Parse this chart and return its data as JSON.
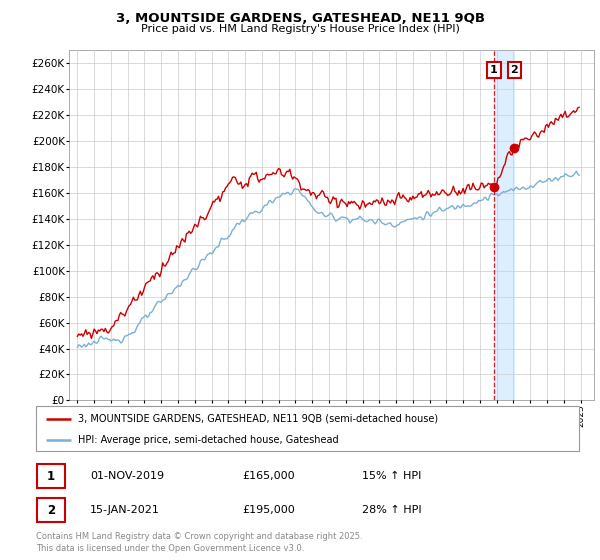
{
  "title": "3, MOUNTSIDE GARDENS, GATESHEAD, NE11 9QB",
  "subtitle": "Price paid vs. HM Land Registry's House Price Index (HPI)",
  "ylim": [
    0,
    270000
  ],
  "yticks": [
    0,
    20000,
    40000,
    60000,
    80000,
    100000,
    120000,
    140000,
    160000,
    180000,
    200000,
    220000,
    240000,
    260000
  ],
  "ytick_labels": [
    "£0",
    "£20K",
    "£40K",
    "£60K",
    "£80K",
    "£100K",
    "£120K",
    "£140K",
    "£160K",
    "£180K",
    "£200K",
    "£220K",
    "£240K",
    "£260K"
  ],
  "property_color": "#cc0000",
  "hpi_color": "#7ab0d4",
  "dashed_line_color": "#cc0000",
  "shade_color": "#ddeeff",
  "background_color": "#ffffff",
  "grid_color": "#cccccc",
  "legend_label_property": "3, MOUNTSIDE GARDENS, GATESHEAD, NE11 9QB (semi-detached house)",
  "legend_label_hpi": "HPI: Average price, semi-detached house, Gateshead",
  "transaction1_date": "01-NOV-2019",
  "transaction1_price": "£165,000",
  "transaction1_hpi": "15% ↑ HPI",
  "transaction2_date": "15-JAN-2021",
  "transaction2_price": "£195,000",
  "transaction2_hpi": "28% ↑ HPI",
  "copyright_text": "Contains HM Land Registry data © Crown copyright and database right 2025.\nThis data is licensed under the Open Government Licence v3.0.",
  "marker1_x_year": 2019.83,
  "marker1_y": 165000,
  "marker2_x_year": 2021.04,
  "marker2_y": 195000,
  "xlim_left": 1994.5,
  "xlim_right": 2025.8
}
